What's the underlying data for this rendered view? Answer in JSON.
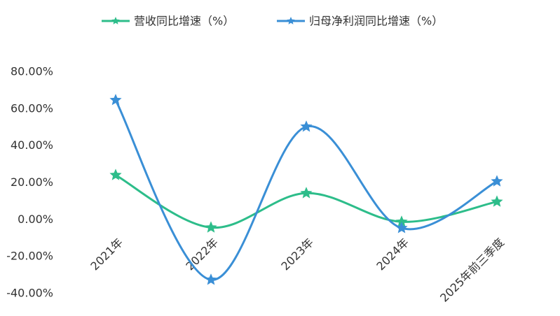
{
  "chart_data": {
    "type": "line",
    "categories": [
      "2021年",
      "2022年",
      "2023年",
      "2024年",
      "2025年前三季度"
    ],
    "series": [
      {
        "name": "营收同比增速（%）",
        "color": "#2dbd8a",
        "values": [
          24.2,
          -4.2,
          14.4,
          -1.1,
          9.8
        ]
      },
      {
        "name": "归母净利润同比增速（%）",
        "color": "#3a8fd6",
        "values": [
          64.8,
          -32.5,
          50.4,
          -4.5,
          20.8
        ]
      }
    ],
    "ylim": [
      -40,
      80
    ],
    "yticks": [
      {
        "value": -40,
        "label": "-40.00%"
      },
      {
        "value": -20,
        "label": "-20.00%"
      },
      {
        "value": 0,
        "label": "0.00%"
      },
      {
        "value": 20,
        "label": "20.00%"
      },
      {
        "value": 40,
        "label": "40.00%"
      },
      {
        "value": 60,
        "label": "60.00%"
      },
      {
        "value": 80,
        "label": "80.00%"
      }
    ],
    "smooth": true
  }
}
